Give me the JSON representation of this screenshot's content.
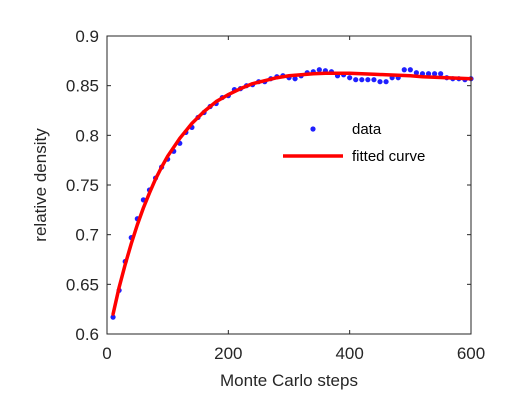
{
  "chart_data": {
    "type": "scatter",
    "xlabel": "Monte Carlo steps",
    "ylabel": "relative density",
    "xlim": [
      0,
      600
    ],
    "ylim": [
      0.6,
      0.9
    ],
    "xticks": [
      0,
      200,
      400,
      600
    ],
    "yticks": [
      0.6,
      0.65,
      0.7,
      0.75,
      0.8,
      0.85,
      0.9
    ],
    "xtick_labels": [
      "0",
      "200",
      "400",
      "600"
    ],
    "ytick_labels": [
      "0.6",
      "0.65",
      "0.7",
      "0.75",
      "0.8",
      "0.85",
      "0.9"
    ],
    "grid": false,
    "legend_position": "center-right",
    "series": [
      {
        "name": "data",
        "style": "dots",
        "color": "#1f1fff",
        "x": [
          10,
          20,
          30,
          40,
          50,
          60,
          70,
          80,
          90,
          100,
          110,
          120,
          130,
          140,
          150,
          160,
          170,
          180,
          190,
          200,
          210,
          220,
          230,
          240,
          250,
          260,
          270,
          280,
          290,
          300,
          310,
          320,
          330,
          340,
          350,
          360,
          370,
          380,
          390,
          400,
          410,
          420,
          430,
          440,
          450,
          460,
          470,
          480,
          490,
          500,
          510,
          520,
          530,
          540,
          550,
          560,
          570,
          580,
          590,
          600
        ],
        "values": [
          0.617,
          0.644,
          0.673,
          0.697,
          0.716,
          0.735,
          0.745,
          0.757,
          0.768,
          0.776,
          0.784,
          0.792,
          0.803,
          0.808,
          0.818,
          0.823,
          0.829,
          0.832,
          0.838,
          0.84,
          0.846,
          0.847,
          0.85,
          0.851,
          0.854,
          0.854,
          0.857,
          0.859,
          0.86,
          0.858,
          0.857,
          0.86,
          0.863,
          0.864,
          0.866,
          0.865,
          0.864,
          0.86,
          0.861,
          0.858,
          0.856,
          0.856,
          0.856,
          0.856,
          0.854,
          0.854,
          0.858,
          0.858,
          0.866,
          0.866,
          0.863,
          0.862,
          0.862,
          0.862,
          0.862,
          0.858,
          0.857,
          0.857,
          0.856,
          0.857
        ]
      },
      {
        "name": "fitted curve",
        "style": "line",
        "color": "#ff0000",
        "x": [
          10,
          20,
          30,
          40,
          50,
          60,
          70,
          80,
          90,
          100,
          120,
          140,
          160,
          180,
          200,
          220,
          240,
          260,
          280,
          300,
          320,
          340,
          360,
          380,
          400,
          420,
          440,
          460,
          480,
          500,
          520,
          540,
          560,
          580,
          600
        ],
        "values": [
          0.62,
          0.647,
          0.67,
          0.691,
          0.71,
          0.727,
          0.742,
          0.756,
          0.768,
          0.779,
          0.797,
          0.812,
          0.824,
          0.834,
          0.841,
          0.847,
          0.852,
          0.855,
          0.858,
          0.86,
          0.861,
          0.862,
          0.8625,
          0.8625,
          0.8625,
          0.862,
          0.8615,
          0.861,
          0.8605,
          0.86,
          0.859,
          0.8585,
          0.858,
          0.8575,
          0.857
        ]
      }
    ]
  }
}
